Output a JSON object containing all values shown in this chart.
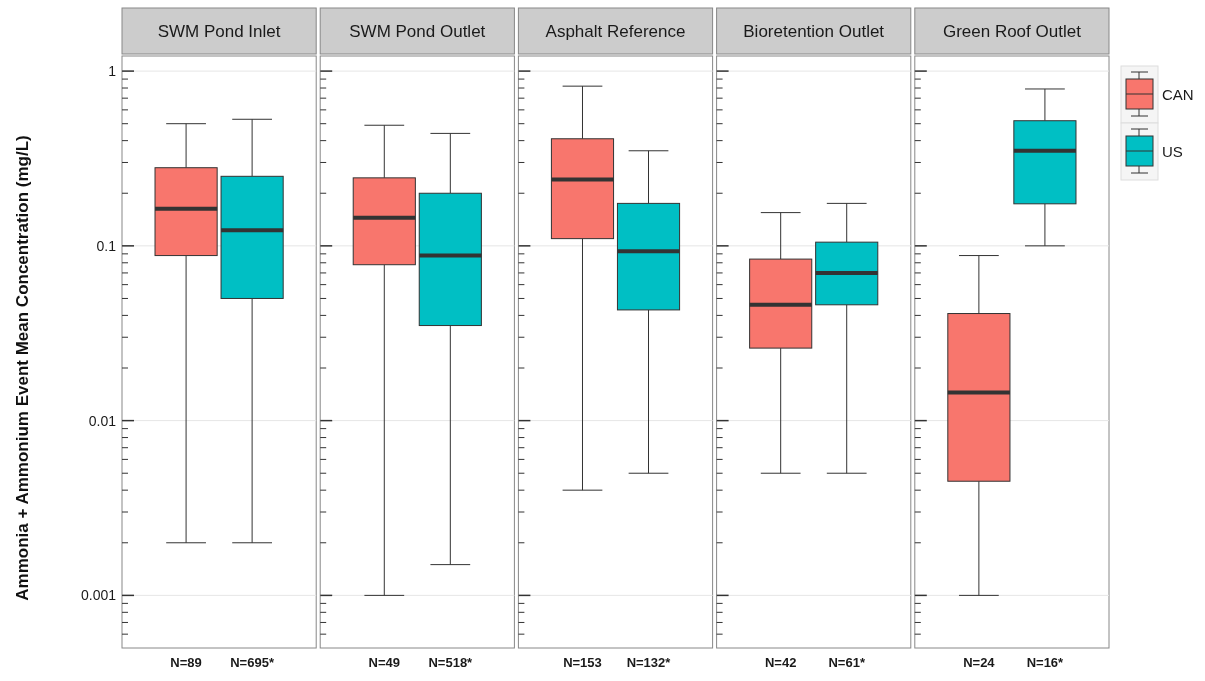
{
  "chart_data": [
    {
      "type": "box",
      "title": "SWM Pond Inlet",
      "ylabel": "Ammonia + Ammonium  Event Mean Concentration (mg/L)",
      "categories": [
        "N=89",
        "N=695*"
      ],
      "log": true,
      "grid": true,
      "ylim": [
        0.0005,
        1.22
      ],
      "yticks": [
        {
          "value": 0.0006,
          "label": null
        },
        {
          "value": 0.0007,
          "label": null
        },
        {
          "value": 0.0008,
          "label": null
        },
        {
          "value": 0.0009,
          "label": null
        },
        0.001,
        {
          "value": 0.002,
          "label": null
        },
        {
          "value": 0.003,
          "label": null
        },
        {
          "value": 0.004,
          "label": null
        },
        {
          "value": 0.005,
          "label": null
        },
        {
          "value": 0.006,
          "label": null
        },
        {
          "value": 0.007,
          "label": null
        },
        {
          "value": 0.008,
          "label": null
        },
        {
          "value": 0.009,
          "label": null
        },
        0.01,
        {
          "value": 0.02,
          "label": null
        },
        {
          "value": 0.03,
          "label": null
        },
        {
          "value": 0.04,
          "label": null
        },
        {
          "value": 0.05,
          "label": null
        },
        {
          "value": 0.06,
          "label": null
        },
        {
          "value": 0.07,
          "label": null
        },
        {
          "value": 0.08,
          "label": null
        },
        {
          "value": 0.09,
          "label": null
        },
        0.1,
        {
          "value": 0.2,
          "label": null
        },
        {
          "value": 0.3,
          "label": null
        },
        {
          "value": 0.4,
          "label": null
        },
        {
          "value": 0.5,
          "label": null
        },
        {
          "value": 0.6,
          "label": null
        },
        {
          "value": 0.7,
          "label": null
        },
        {
          "value": 0.8,
          "label": null
        },
        {
          "value": 0.9,
          "label": null
        },
        1
      ],
      "series": [
        {
          "color": "#f8766d",
          "boxes": [
            {
              "low": 0.002,
              "q1": 0.088,
              "median": 0.163,
              "q3": 0.28,
              "high": 0.5
            },
            null
          ]
        },
        {
          "color": "#00bfc4",
          "boxes": [
            null,
            {
              "low": 0.002,
              "q1": 0.05,
              "median": 0.123,
              "q3": 0.25,
              "high": 0.53
            }
          ]
        }
      ]
    },
    {
      "type": "box",
      "title": "SWM Pond Outlet",
      "categories": [
        "N=49",
        "N=518*"
      ],
      "log": true,
      "grid": true,
      "ylim": [
        0.0005,
        1.22
      ],
      "tick_labels": "x",
      "yticks": [
        {
          "value": 0.0006,
          "label": null
        },
        {
          "value": 0.0007,
          "label": null
        },
        {
          "value": 0.0008,
          "label": null
        },
        {
          "value": 0.0009,
          "label": null
        },
        0.001,
        {
          "value": 0.002,
          "label": null
        },
        {
          "value": 0.003,
          "label": null
        },
        {
          "value": 0.004,
          "label": null
        },
        {
          "value": 0.005,
          "label": null
        },
        {
          "value": 0.006,
          "label": null
        },
        {
          "value": 0.007,
          "label": null
        },
        {
          "value": 0.008,
          "label": null
        },
        {
          "value": 0.009,
          "label": null
        },
        0.01,
        {
          "value": 0.02,
          "label": null
        },
        {
          "value": 0.03,
          "label": null
        },
        {
          "value": 0.04,
          "label": null
        },
        {
          "value": 0.05,
          "label": null
        },
        {
          "value": 0.06,
          "label": null
        },
        {
          "value": 0.07,
          "label": null
        },
        {
          "value": 0.08,
          "label": null
        },
        {
          "value": 0.09,
          "label": null
        },
        0.1,
        {
          "value": 0.2,
          "label": null
        },
        {
          "value": 0.3,
          "label": null
        },
        {
          "value": 0.4,
          "label": null
        },
        {
          "value": 0.5,
          "label": null
        },
        {
          "value": 0.6,
          "label": null
        },
        {
          "value": 0.7,
          "label": null
        },
        {
          "value": 0.8,
          "label": null
        },
        {
          "value": 0.9,
          "label": null
        },
        1
      ],
      "series": [
        {
          "color": "#f8766d",
          "boxes": [
            {
              "low": 0.001,
              "q1": 0.078,
              "median": 0.145,
              "q3": 0.245,
              "high": 0.49
            },
            null
          ]
        },
        {
          "color": "#00bfc4",
          "boxes": [
            null,
            {
              "low": 0.0015,
              "q1": 0.035,
              "median": 0.088,
              "q3": 0.2,
              "high": 0.44
            }
          ]
        }
      ]
    },
    {
      "type": "box",
      "title": "Asphalt Reference",
      "categories": [
        "N=153",
        "N=132*"
      ],
      "log": true,
      "grid": true,
      "ylim": [
        0.0005,
        1.22
      ],
      "tick_labels": "x",
      "yticks": [
        {
          "value": 0.0006,
          "label": null
        },
        {
          "value": 0.0007,
          "label": null
        },
        {
          "value": 0.0008,
          "label": null
        },
        {
          "value": 0.0009,
          "label": null
        },
        0.001,
        {
          "value": 0.002,
          "label": null
        },
        {
          "value": 0.003,
          "label": null
        },
        {
          "value": 0.004,
          "label": null
        },
        {
          "value": 0.005,
          "label": null
        },
        {
          "value": 0.006,
          "label": null
        },
        {
          "value": 0.007,
          "label": null
        },
        {
          "value": 0.008,
          "label": null
        },
        {
          "value": 0.009,
          "label": null
        },
        0.01,
        {
          "value": 0.02,
          "label": null
        },
        {
          "value": 0.03,
          "label": null
        },
        {
          "value": 0.04,
          "label": null
        },
        {
          "value": 0.05,
          "label": null
        },
        {
          "value": 0.06,
          "label": null
        },
        {
          "value": 0.07,
          "label": null
        },
        {
          "value": 0.08,
          "label": null
        },
        {
          "value": 0.09,
          "label": null
        },
        0.1,
        {
          "value": 0.2,
          "label": null
        },
        {
          "value": 0.3,
          "label": null
        },
        {
          "value": 0.4,
          "label": null
        },
        {
          "value": 0.5,
          "label": null
        },
        {
          "value": 0.6,
          "label": null
        },
        {
          "value": 0.7,
          "label": null
        },
        {
          "value": 0.8,
          "label": null
        },
        {
          "value": 0.9,
          "label": null
        },
        1
      ],
      "series": [
        {
          "color": "#f8766d",
          "boxes": [
            {
              "low": 0.004,
              "q1": 0.11,
              "median": 0.24,
              "q3": 0.41,
              "high": 0.82
            },
            null
          ]
        },
        {
          "color": "#00bfc4",
          "boxes": [
            null,
            {
              "low": 0.005,
              "q1": 0.043,
              "median": 0.093,
              "q3": 0.175,
              "high": 0.35
            }
          ]
        }
      ]
    },
    {
      "type": "box",
      "title": "Bioretention Outlet",
      "categories": [
        "N=42",
        "N=61*"
      ],
      "log": true,
      "grid": true,
      "ylim": [
        0.0005,
        1.22
      ],
      "tick_labels": "x",
      "yticks": [
        {
          "value": 0.0006,
          "label": null
        },
        {
          "value": 0.0007,
          "label": null
        },
        {
          "value": 0.0008,
          "label": null
        },
        {
          "value": 0.0009,
          "label": null
        },
        0.001,
        {
          "value": 0.002,
          "label": null
        },
        {
          "value": 0.003,
          "label": null
        },
        {
          "value": 0.004,
          "label": null
        },
        {
          "value": 0.005,
          "label": null
        },
        {
          "value": 0.006,
          "label": null
        },
        {
          "value": 0.007,
          "label": null
        },
        {
          "value": 0.008,
          "label": null
        },
        {
          "value": 0.009,
          "label": null
        },
        0.01,
        {
          "value": 0.02,
          "label": null
        },
        {
          "value": 0.03,
          "label": null
        },
        {
          "value": 0.04,
          "label": null
        },
        {
          "value": 0.05,
          "label": null
        },
        {
          "value": 0.06,
          "label": null
        },
        {
          "value": 0.07,
          "label": null
        },
        {
          "value": 0.08,
          "label": null
        },
        {
          "value": 0.09,
          "label": null
        },
        0.1,
        {
          "value": 0.2,
          "label": null
        },
        {
          "value": 0.3,
          "label": null
        },
        {
          "value": 0.4,
          "label": null
        },
        {
          "value": 0.5,
          "label": null
        },
        {
          "value": 0.6,
          "label": null
        },
        {
          "value": 0.7,
          "label": null
        },
        {
          "value": 0.8,
          "label": null
        },
        {
          "value": 0.9,
          "label": null
        },
        1
      ],
      "series": [
        {
          "color": "#f8766d",
          "boxes": [
            {
              "low": 0.005,
              "q1": 0.026,
              "median": 0.046,
              "q3": 0.084,
              "high": 0.155
            },
            null
          ]
        },
        {
          "color": "#00bfc4",
          "boxes": [
            null,
            {
              "low": 0.005,
              "q1": 0.046,
              "median": 0.07,
              "q3": 0.105,
              "high": 0.175
            }
          ]
        }
      ]
    },
    {
      "type": "box",
      "title": "Green Roof Outlet",
      "categories": [
        "N=24",
        "N=16*"
      ],
      "log": true,
      "grid": true,
      "ylim": [
        0.0005,
        1.22
      ],
      "tick_labels": "x",
      "legend": "right",
      "yticks": [
        {
          "value": 0.0006,
          "label": null
        },
        {
          "value": 0.0007,
          "label": null
        },
        {
          "value": 0.0008,
          "label": null
        },
        {
          "value": 0.0009,
          "label": null
        },
        0.001,
        {
          "value": 0.002,
          "label": null
        },
        {
          "value": 0.003,
          "label": null
        },
        {
          "value": 0.004,
          "label": null
        },
        {
          "value": 0.005,
          "label": null
        },
        {
          "value": 0.006,
          "label": null
        },
        {
          "value": 0.007,
          "label": null
        },
        {
          "value": 0.008,
          "label": null
        },
        {
          "value": 0.009,
          "label": null
        },
        0.01,
        {
          "value": 0.02,
          "label": null
        },
        {
          "value": 0.03,
          "label": null
        },
        {
          "value": 0.04,
          "label": null
        },
        {
          "value": 0.05,
          "label": null
        },
        {
          "value": 0.06,
          "label": null
        },
        {
          "value": 0.07,
          "label": null
        },
        {
          "value": 0.08,
          "label": null
        },
        {
          "value": 0.09,
          "label": null
        },
        0.1,
        {
          "value": 0.2,
          "label": null
        },
        {
          "value": 0.3,
          "label": null
        },
        {
          "value": 0.4,
          "label": null
        },
        {
          "value": 0.5,
          "label": null
        },
        {
          "value": 0.6,
          "label": null
        },
        {
          "value": 0.7,
          "label": null
        },
        {
          "value": 0.8,
          "label": null
        },
        {
          "value": 0.9,
          "label": null
        },
        1
      ],
      "series": [
        {
          "name": "CAN",
          "color": "#f8766d",
          "boxes": [
            {
              "low": 0.001,
              "q1": 0.0045,
              "median": 0.0145,
              "q3": 0.041,
              "high": 0.088
            },
            null
          ]
        },
        {
          "name": "US",
          "color": "#00bfc4",
          "boxes": [
            null,
            {
              "low": 0.1,
              "q1": 0.174,
              "median": 0.35,
              "q3": 0.52,
              "high": 0.79
            }
          ]
        }
      ]
    }
  ]
}
